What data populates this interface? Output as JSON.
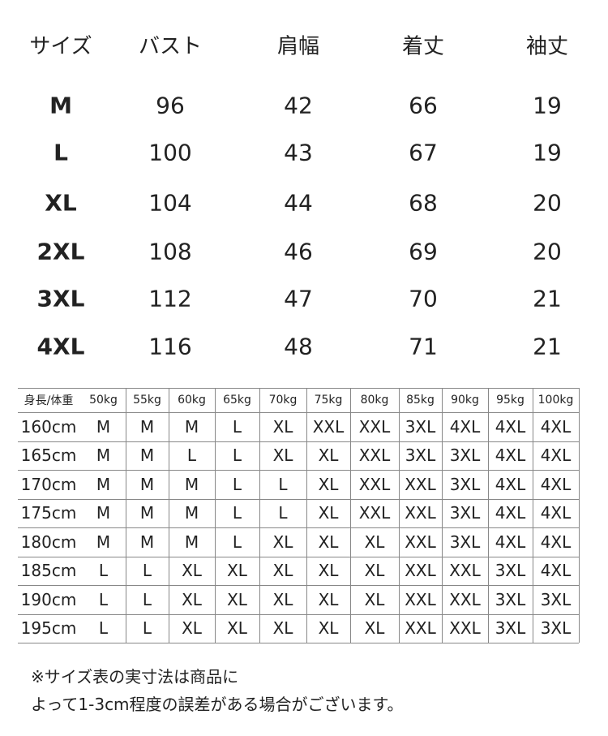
{
  "size_table": {
    "header": [
      "サイズ",
      "バスト",
      "肩幅",
      "着丈",
      "袖丈"
    ],
    "rows": [
      [
        "M",
        "96",
        "42",
        "66",
        "19"
      ],
      [
        "L",
        "100",
        "43",
        "67",
        "19"
      ],
      [
        "XL",
        "104",
        "44",
        "68",
        "20"
      ],
      [
        "2XL",
        "108",
        "46",
        "69",
        "20"
      ],
      [
        "3XL",
        "112",
        "47",
        "70",
        "21"
      ],
      [
        "4XL",
        "116",
        "48",
        "71",
        "21"
      ]
    ]
  },
  "fit_table": {
    "header": [
      "身長/体重",
      "50kg",
      "55kg",
      "60kg",
      "65kg",
      "70kg",
      "75kg",
      "80kg",
      "85kg",
      "90kg",
      "95kg",
      "100kg"
    ],
    "rows": [
      [
        "160cm",
        "M",
        "M",
        "M",
        "L",
        "XL",
        "XXL",
        "XXL",
        "3XL",
        "4XL",
        "4XL",
        "4XL"
      ],
      [
        "165cm",
        "M",
        "M",
        "L",
        "L",
        "XL",
        "XL",
        "XXL",
        "3XL",
        "3XL",
        "4XL",
        "4XL"
      ],
      [
        "170cm",
        "M",
        "M",
        "M",
        "L",
        "L",
        "XL",
        "XXL",
        "XXL",
        "3XL",
        "4XL",
        "4XL"
      ],
      [
        "175cm",
        "M",
        "M",
        "M",
        "L",
        "L",
        "XL",
        "XXL",
        "XXL",
        "3XL",
        "4XL",
        "4XL"
      ],
      [
        "180cm",
        "M",
        "M",
        "M",
        "L",
        "XL",
        "XL",
        "XL",
        "XXL",
        "3XL",
        "4XL",
        "4XL"
      ],
      [
        "185cm",
        "L",
        "L",
        "XL",
        "XL",
        "XL",
        "XL",
        "XL",
        "XXL",
        "XXL",
        "3XL",
        "4XL"
      ],
      [
        "190cm",
        "L",
        "L",
        "XL",
        "XL",
        "XL",
        "XL",
        "XL",
        "XXL",
        "XXL",
        "3XL",
        "3XL"
      ],
      [
        "195cm",
        "L",
        "L",
        "XL",
        "XL",
        "XL",
        "XL",
        "XL",
        "XXL",
        "XXL",
        "3XL",
        "3XL"
      ]
    ]
  },
  "note": [
    "※サイズ表の実寸法は商品に",
    "よって1-3cm程度の誤差がある場合がございます。"
  ]
}
